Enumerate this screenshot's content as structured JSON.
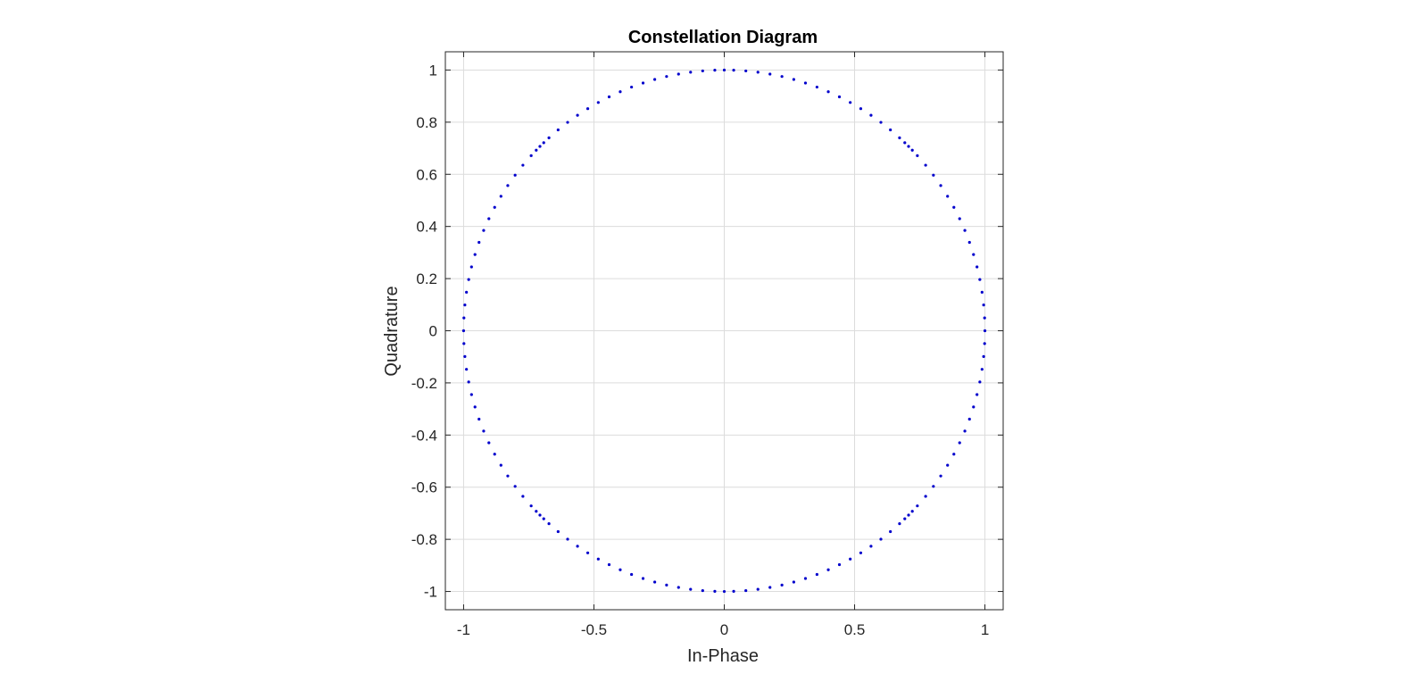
{
  "chart_data": {
    "type": "scatter",
    "title": "Constellation Diagram",
    "xlabel": "In-Phase",
    "ylabel": "Quadrature",
    "xlim": [
      -1.07,
      1.07
    ],
    "ylim": [
      -1.07,
      1.07
    ],
    "xticks": [
      -1,
      -0.5,
      0,
      0.5,
      1
    ],
    "xtick_labels": [
      "-1",
      "-0.5",
      "0",
      "0.5",
      "1"
    ],
    "yticks": [
      -1,
      -0.8,
      -0.6,
      -0.4,
      -0.2,
      0,
      0.2,
      0.4,
      0.6,
      0.8,
      1
    ],
    "ytick_labels": [
      "-1",
      "-0.8",
      "-0.6",
      "-0.4",
      "-0.2",
      "0",
      "0.2",
      "0.4",
      "0.6",
      "0.8",
      "1"
    ],
    "grid": true,
    "marker_color": "#0000cc",
    "series": [
      {
        "description": "unit-magnitude symbols uniformly distributed on the unit circle",
        "x": [
          1.0,
          0.9988,
          0.9951,
          0.989,
          0.9805,
          0.9696,
          0.9563,
          0.9408,
          0.923,
          0.903,
          0.8809,
          0.8567,
          0.8305,
          0.8024,
          0.7725,
          0.7408,
          0.7214,
          0.7071,
          0.6926,
          0.6725,
          0.6374,
          0.6009,
          0.563,
          0.5237,
          0.4833,
          0.4417,
          0.3991,
          0.3557,
          0.3115,
          0.2667,
          0.2213,
          0.1754,
          0.1292,
          0.0828,
          0.0362,
          0.0,
          -0.0362,
          -0.0828,
          -0.1292,
          -0.1754,
          -0.2213,
          -0.2667,
          -0.3115,
          -0.3557,
          -0.3991,
          -0.4417,
          -0.4833,
          -0.5237,
          -0.563,
          -0.6009,
          -0.6374,
          -0.6725,
          -0.6926,
          -0.7071,
          -0.7214,
          -0.7408,
          -0.7725,
          -0.8024,
          -0.8305,
          -0.8567,
          -0.8809,
          -0.903,
          -0.923,
          -0.9408,
          -0.9563,
          -0.9696,
          -0.9805,
          -0.989,
          -0.9951,
          -0.9988,
          -1.0,
          -0.9988,
          -0.9951,
          -0.989,
          -0.9805,
          -0.9696,
          -0.9563,
          -0.9408,
          -0.923,
          -0.903,
          -0.8809,
          -0.8567,
          -0.8305,
          -0.8024,
          -0.7725,
          -0.7408,
          -0.7214,
          -0.7071,
          -0.6926,
          -0.6725,
          -0.6374,
          -0.6009,
          -0.563,
          -0.5237,
          -0.4833,
          -0.4417,
          -0.3991,
          -0.3557,
          -0.3115,
          -0.2667,
          -0.2213,
          -0.1754,
          -0.1292,
          -0.0828,
          -0.0362,
          0.0,
          0.0362,
          0.0828,
          0.1292,
          0.1754,
          0.2213,
          0.2667,
          0.3115,
          0.3557,
          0.3991,
          0.4417,
          0.4833,
          0.5237,
          0.563,
          0.6009,
          0.6374,
          0.6725,
          0.6926,
          0.7071,
          0.7214,
          0.7408,
          0.7725,
          0.8024,
          0.8305,
          0.8567,
          0.8809,
          0.903,
          0.923,
          0.9408,
          0.9563,
          0.9696,
          0.9805,
          0.989,
          0.9951,
          0.9988
        ],
        "y": [
          0.0,
          0.0493,
          0.0988,
          0.1478,
          0.1965,
          0.2447,
          0.2924,
          0.339,
          0.3848,
          0.4296,
          0.4733,
          0.5158,
          0.557,
          0.5968,
          0.635,
          0.6717,
          0.6925,
          0.7071,
          0.7213,
          0.7401,
          0.7705,
          0.7993,
          0.8265,
          0.8519,
          0.8755,
          0.8972,
          0.9169,
          0.9346,
          0.9502,
          0.9638,
          0.9752,
          0.9845,
          0.9916,
          0.9966,
          0.9993,
          1.0,
          0.9993,
          0.9966,
          0.9916,
          0.9845,
          0.9752,
          0.9638,
          0.9502,
          0.9346,
          0.9169,
          0.8972,
          0.8755,
          0.8519,
          0.8265,
          0.7993,
          0.7705,
          0.7401,
          0.7213,
          0.7071,
          0.6925,
          0.6717,
          0.635,
          0.5968,
          0.557,
          0.5158,
          0.4733,
          0.4296,
          0.3848,
          0.339,
          0.2924,
          0.2447,
          0.1965,
          0.1478,
          0.0988,
          0.0493,
          0.0,
          -0.0493,
          -0.0988,
          -0.1478,
          -0.1965,
          -0.2447,
          -0.2924,
          -0.339,
          -0.3848,
          -0.4296,
          -0.4733,
          -0.5158,
          -0.557,
          -0.5968,
          -0.635,
          -0.6717,
          -0.6925,
          -0.7071,
          -0.7213,
          -0.7401,
          -0.7705,
          -0.7993,
          -0.8265,
          -0.8519,
          -0.8755,
          -0.8972,
          -0.9169,
          -0.9346,
          -0.9502,
          -0.9638,
          -0.9752,
          -0.9845,
          -0.9916,
          -0.9966,
          -0.9993,
          -1.0,
          -0.9993,
          -0.9966,
          -0.9916,
          -0.9845,
          -0.9752,
          -0.9638,
          -0.9502,
          -0.9346,
          -0.9169,
          -0.8972,
          -0.8755,
          -0.8519,
          -0.8265,
          -0.7993,
          -0.7705,
          -0.7401,
          -0.7213,
          -0.7071,
          -0.6925,
          -0.6717,
          -0.635,
          -0.5968,
          -0.557,
          -0.5158,
          -0.4733,
          -0.4296,
          -0.3848,
          -0.339,
          -0.2924,
          -0.2447,
          -0.1965,
          -0.1478,
          -0.0988,
          -0.0493
        ]
      }
    ]
  }
}
